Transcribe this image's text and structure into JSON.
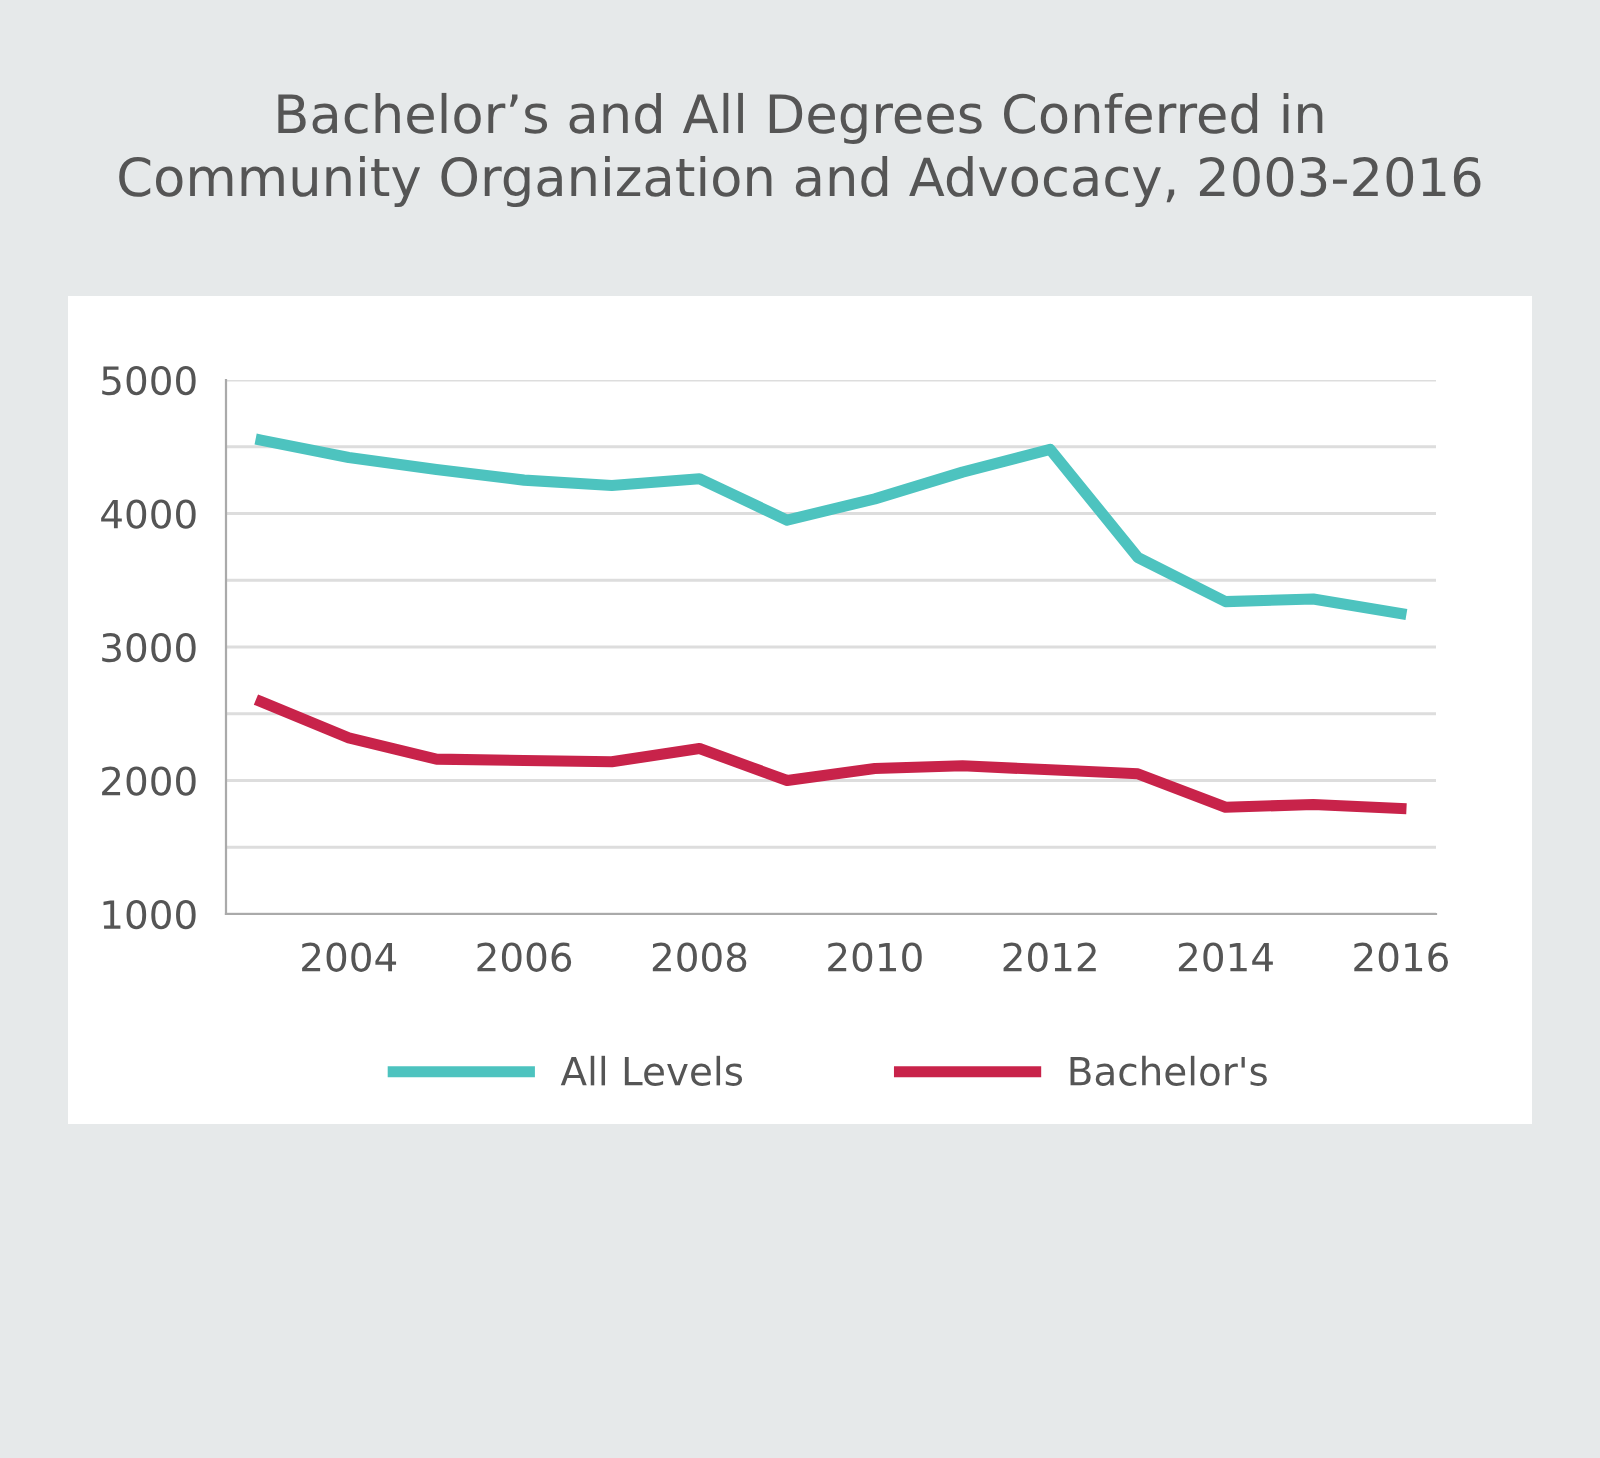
{
  "chart_data": {
    "type": "line",
    "title": "Bachelor’s and All Degrees Conferred in\nCommunity Organization and Advocacy, 2003-2016",
    "x": [
      2003,
      2004,
      2005,
      2006,
      2007,
      2008,
      2009,
      2010,
      2011,
      2012,
      2013,
      2014,
      2015,
      2016
    ],
    "series": [
      {
        "name": "All Levels",
        "color": "#4dc3bf",
        "values": [
          4550,
          4420,
          4330,
          4250,
          4210,
          4260,
          3950,
          4110,
          4310,
          4480,
          3670,
          3340,
          3360,
          3250
        ]
      },
      {
        "name": "Bachelor's",
        "color": "#c8234a",
        "values": [
          2590,
          2320,
          2160,
          2150,
          2140,
          2240,
          2000,
          2090,
          2110,
          2080,
          2050,
          1800,
          1820,
          1790
        ]
      }
    ],
    "xlim": [
      2002.6,
      2016.4
    ],
    "xticks": [
      2004,
      2006,
      2008,
      2010,
      2012,
      2014,
      2016
    ],
    "ylim": [
      1000,
      5000
    ],
    "yticks": [
      1000,
      {
        "value": 1500,
        "label": null
      },
      2000,
      {
        "value": 2500,
        "label": null
      },
      3000,
      {
        "value": 3500,
        "label": null
      },
      4000,
      {
        "value": 4500,
        "label": null
      },
      5000
    ],
    "grid": "y",
    "legend": "bottom",
    "marker": "none",
    "line_style": "solid"
  }
}
